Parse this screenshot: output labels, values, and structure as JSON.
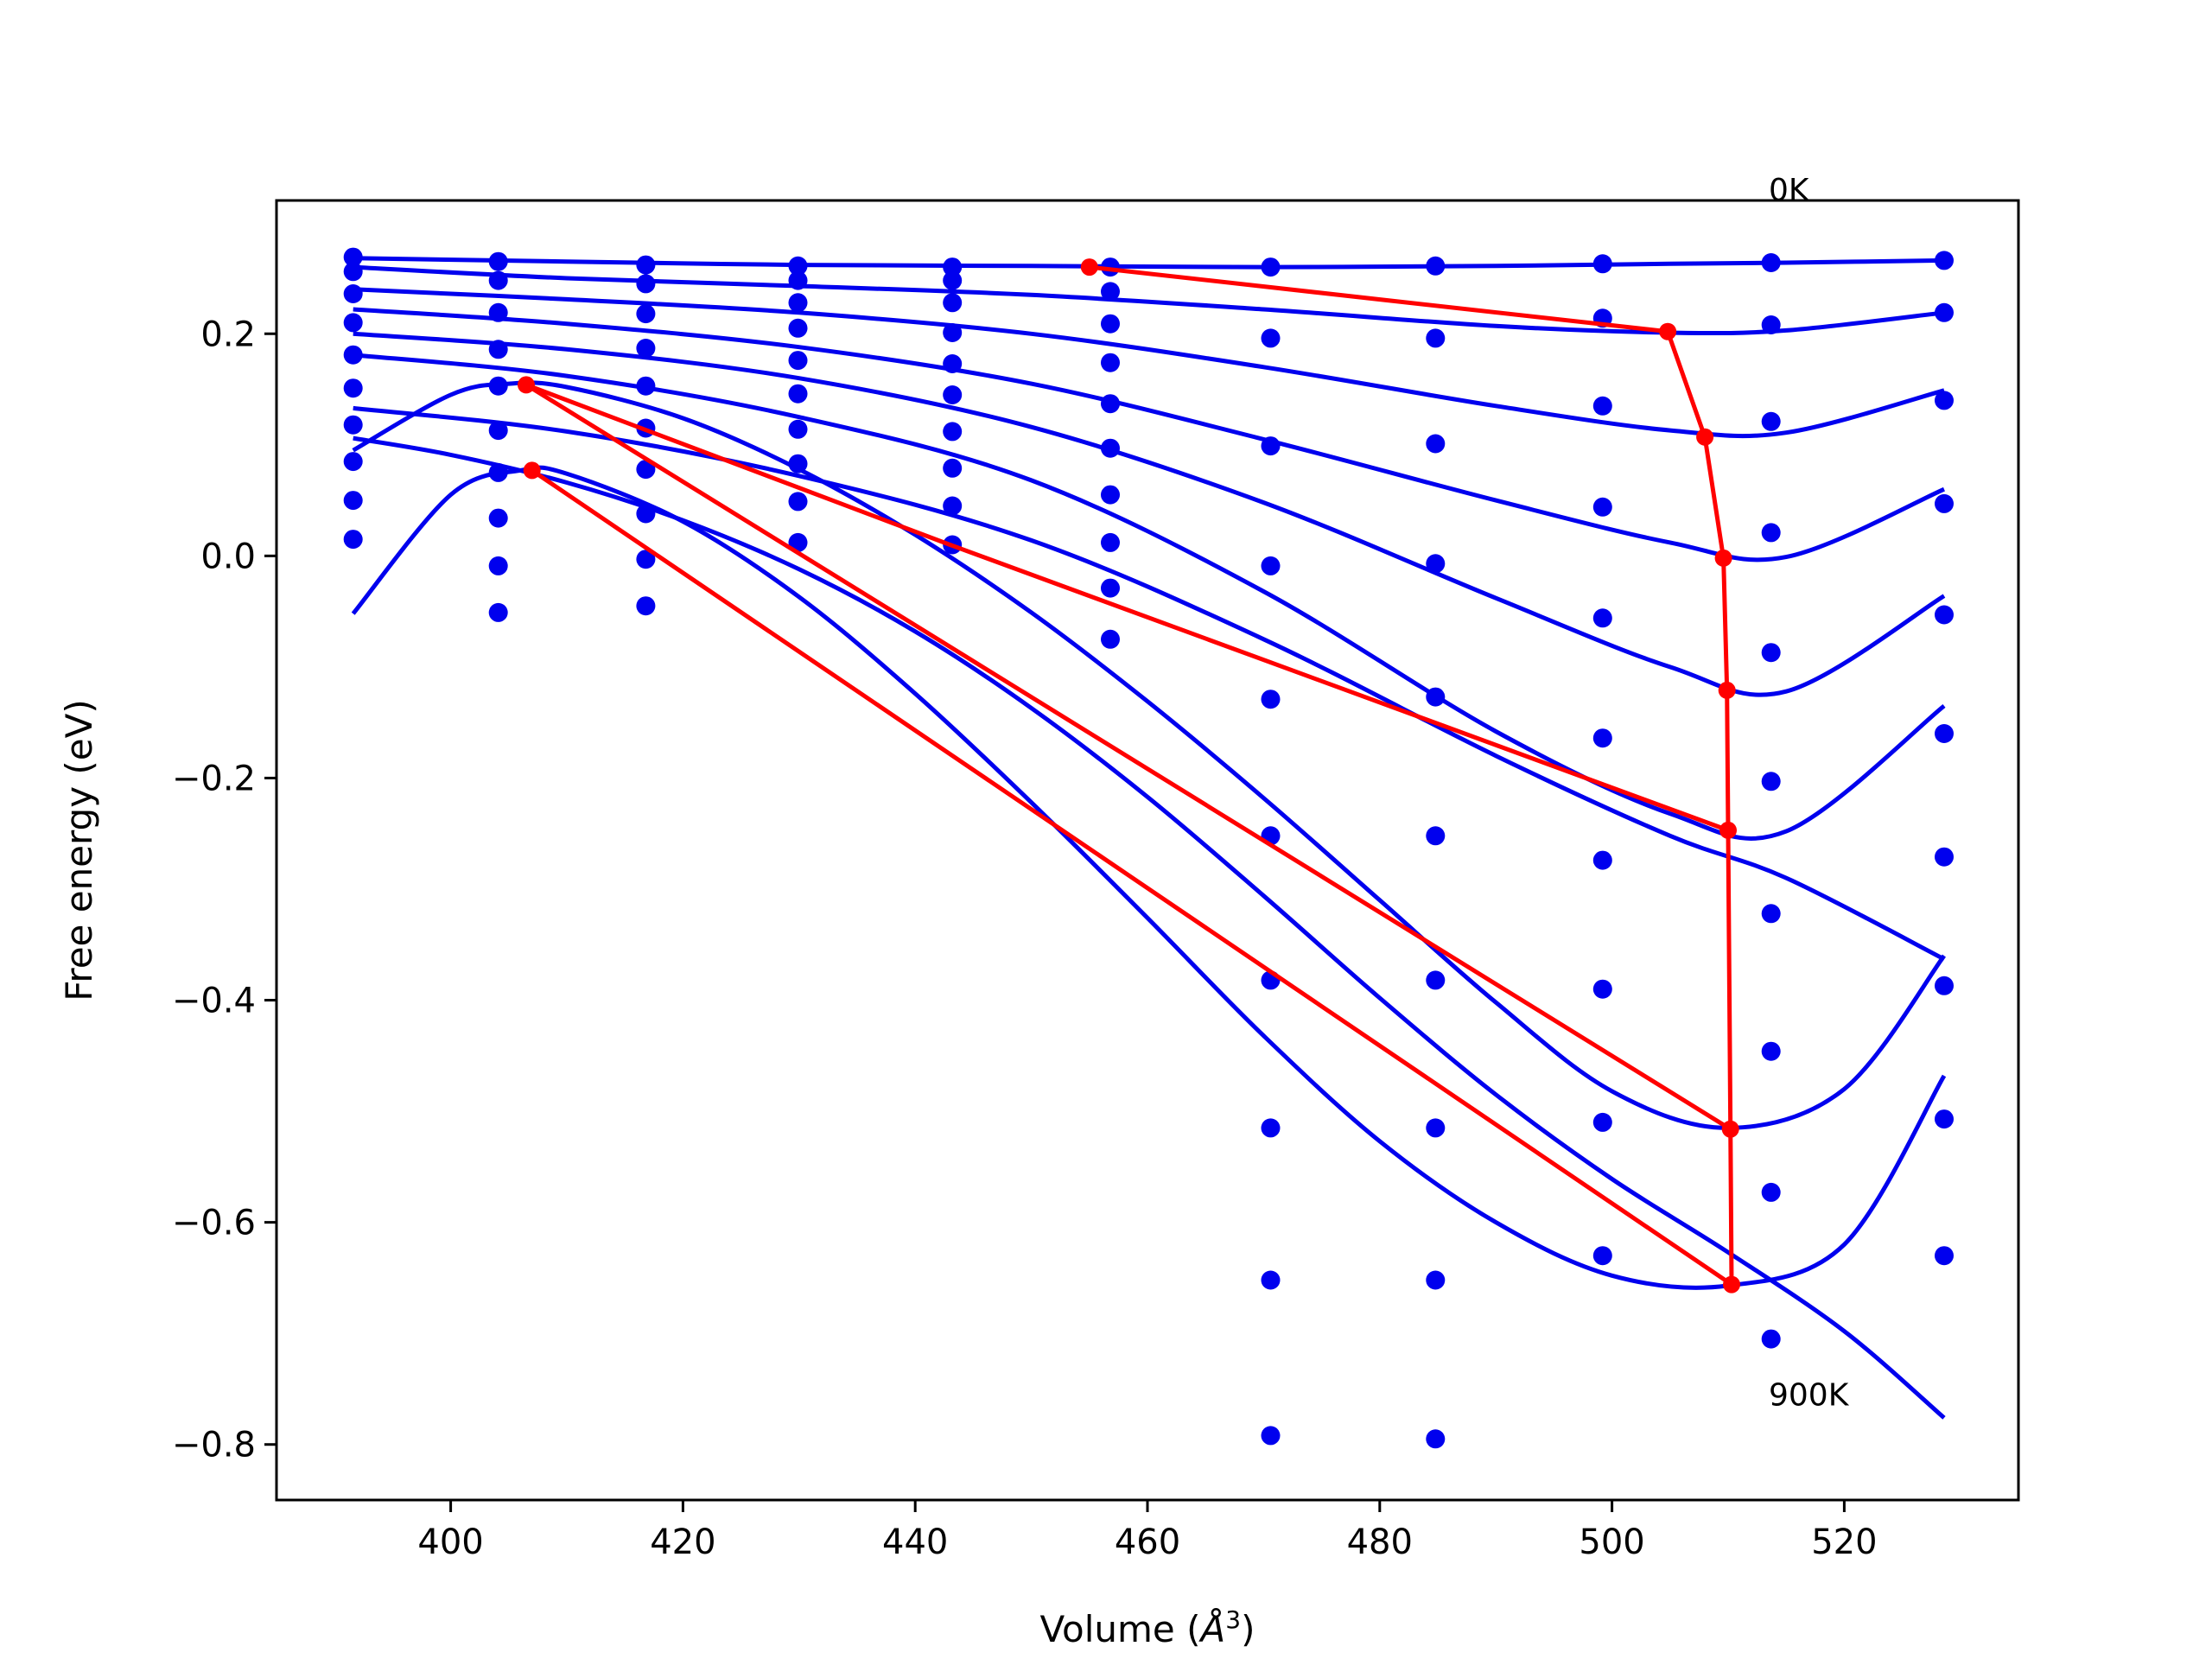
{
  "chart_data": {
    "type": "line",
    "title": "",
    "xlabel": "Volume (",
    "xlabel_unit": "Å",
    "xlabel_exp": "3",
    "xlabel_close": ")",
    "ylabel": "Free energy (eV)",
    "xlim": [
      385,
      535
    ],
    "ylim": [
      -0.85,
      0.32
    ],
    "xticks": [
      400,
      420,
      440,
      460,
      480,
      500,
      520
    ],
    "xtick_labels": [
      "400",
      "420",
      "440",
      "460",
      "480",
      "500",
      "520"
    ],
    "yticks": [
      0.2,
      0.0,
      -0.2,
      -0.4,
      -0.6,
      -0.8
    ],
    "ytick_labels": [
      "0.2",
      "0.0",
      "−0.2",
      "−0.4",
      "−0.6",
      "−0.8"
    ],
    "grid": false,
    "annotations": [
      {
        "text": "0K",
        "x": 513.5,
        "y": 0.32
      },
      {
        "text": "900K",
        "x": 513.5,
        "y": -0.765
      }
    ],
    "colors": {
      "fit": "#0000ee",
      "points": "#0000ee",
      "minima": "#ff0000"
    },
    "volumes": [
      391.6,
      404.1,
      416.8,
      429.9,
      443.2,
      456.8,
      470.6,
      484.8,
      499.2,
      513.7,
      528.6
    ],
    "data_points": [
      [
        0.269,
        0.265,
        0.262,
        0.261,
        0.26,
        0.26,
        0.26,
        0.261,
        0.263,
        0.264,
        0.266
      ],
      [
        0.256,
        0.248,
        0.245,
        0.248,
        0.248,
        0.238,
        null,
        null,
        null,
        null,
        null
      ],
      [
        0.236,
        0.219,
        0.218,
        0.228,
        0.228,
        0.209,
        0.196,
        0.196,
        0.214,
        0.208,
        0.219
      ],
      [
        0.21,
        0.186,
        0.187,
        0.205,
        0.201,
        0.174,
        null,
        null,
        null,
        null,
        null
      ],
      [
        0.181,
        0.153,
        0.153,
        0.176,
        0.173,
        0.137,
        0.099,
        0.101,
        0.135,
        0.121,
        0.14
      ],
      [
        0.151,
        0.113,
        0.115,
        0.146,
        0.145,
        0.097,
        null,
        null,
        null,
        null,
        null
      ],
      [
        0.118,
        0.075,
        0.078,
        0.114,
        0.112,
        0.055,
        -0.009,
        -0.007,
        0.044,
        0.021,
        0.047
      ],
      [
        0.085,
        0.034,
        0.038,
        0.083,
        0.079,
        0.012,
        null,
        null,
        null,
        null,
        null
      ],
      [
        0.05,
        -0.009,
        -0.003,
        0.049,
        0.045,
        -0.029,
        -0.129,
        -0.127,
        -0.056,
        -0.087,
        -0.053
      ],
      [
        0.015,
        -0.051,
        -0.045,
        0.012,
        0.01,
        -0.075,
        null,
        null,
        null,
        null,
        null
      ],
      [
        null,
        null,
        null,
        null,
        null,
        null,
        -0.252,
        -0.252,
        -0.164,
        -0.203,
        -0.16
      ],
      [
        null,
        null,
        null,
        null,
        null,
        null,
        null,
        null,
        -0.274,
        -0.322,
        -0.271
      ],
      [
        null,
        null,
        null,
        null,
        null,
        null,
        -0.382,
        -0.382,
        -0.39,
        -0.446,
        -0.387
      ],
      [
        null,
        null,
        null,
        null,
        null,
        null,
        -0.515,
        -0.515,
        -0.51,
        -0.573,
        -0.507
      ],
      [
        null,
        null,
        null,
        null,
        null,
        null,
        -0.652,
        -0.652,
        -0.63,
        -0.705,
        -0.63
      ],
      [
        null,
        null,
        null,
        null,
        null,
        null,
        -0.792,
        -0.795,
        null,
        null,
        null
      ]
    ],
    "series": [
      {
        "x": [
          391.6,
          410,
          430,
          450,
          470,
          490,
          505,
          515,
          528.6
        ],
        "y": [
          0.268,
          0.265,
          0.262,
          0.261,
          0.26,
          0.261,
          0.263,
          0.264,
          0.266
        ]
      },
      {
        "x": [
          391.6,
          410,
          430,
          450,
          470,
          490,
          505,
          515,
          528.6
        ],
        "y": [
          0.26,
          0.25,
          0.243,
          0.235,
          0.222,
          0.207,
          0.201,
          0.203,
          0.219
        ]
      },
      {
        "x": [
          391.6,
          410,
          430,
          450,
          470,
          490,
          505,
          515,
          528.6
        ],
        "y": [
          0.24,
          0.231,
          0.219,
          0.2,
          0.17,
          0.135,
          0.113,
          0.111,
          0.149
        ]
      },
      {
        "x": [
          391.6,
          410,
          430,
          450,
          470,
          490,
          505,
          515,
          528.6
        ],
        "y": [
          0.222,
          0.209,
          0.188,
          0.155,
          0.105,
          0.05,
          0.012,
          -0.001,
          0.06
        ]
      },
      {
        "x": [
          391.6,
          410,
          430,
          450,
          470,
          490,
          505,
          515,
          528.6
        ],
        "y": [
          0.2,
          0.186,
          0.16,
          0.116,
          0.048,
          -0.038,
          -0.1,
          -0.122,
          -0.036
        ]
      },
      {
        "x": [
          391.6,
          410,
          430,
          450,
          470,
          490,
          505,
          515,
          528.6
        ],
        "y": [
          0.181,
          0.162,
          0.125,
          0.068,
          -0.032,
          -0.158,
          -0.232,
          -0.248,
          -0.135
        ]
      },
      {
        "x": [
          391.6,
          410,
          430,
          450,
          470,
          490,
          505,
          515,
          528.6
        ],
        "y": [
          0.133,
          0.112,
          0.072,
          0.014,
          -0.075,
          -0.18,
          -0.252,
          -0.29,
          -0.363
        ]
      },
      {
        "x": [
          391.6,
          400,
          405,
          410,
          420,
          430,
          440,
          450,
          460,
          470,
          480,
          490,
          500,
          510,
          520,
          528.6
        ],
        "y": [
          0.095,
          0.145,
          0.155,
          0.152,
          0.124,
          0.078,
          0.019,
          -0.051,
          -0.131,
          -0.218,
          -0.31,
          -0.402,
          -0.482,
          -0.515,
          -0.48,
          -0.36
        ]
      },
      {
        "x": [
          391.6,
          400,
          406,
          410,
          420,
          430,
          440,
          450,
          460,
          470,
          480,
          490,
          500,
          510,
          520,
          528.6
        ],
        "y": [
          -0.052,
          0.055,
          0.077,
          0.074,
          0.031,
          -0.037,
          -0.124,
          -0.222,
          -0.326,
          -0.432,
          -0.527,
          -0.6,
          -0.648,
          -0.657,
          -0.62,
          -0.468
        ]
      },
      {
        "x": [
          391.6,
          400,
          410,
          420,
          430,
          440,
          450,
          460,
          470,
          480,
          490,
          500,
          510,
          520,
          528.6
        ],
        "y": [
          0.106,
          0.091,
          0.066,
          0.032,
          -0.012,
          -0.068,
          -0.137,
          -0.217,
          -0.306,
          -0.398,
          -0.485,
          -0.561,
          -0.627,
          -0.698,
          -0.776
        ]
      }
    ],
    "minima_path": {
      "x": [
        455.0,
        504.8,
        508.0,
        509.6,
        509.9,
        510.0,
        510.2,
        510.3
      ],
      "y": [
        0.26,
        0.202,
        0.107,
        -0.002,
        -0.121,
        -0.247,
        -0.516,
        -0.656
      ]
    },
    "tangent_lines": [
      {
        "x": [
          406.5,
          443.0,
          510.0
        ],
        "y": [
          0.154,
          0.01,
          -0.247
        ]
      },
      {
        "x": [
          406.5,
          510.2
        ],
        "y": [
          0.154,
          -0.516
        ]
      },
      {
        "x": [
          407.0,
          510.3
        ],
        "y": [
          0.077,
          -0.656
        ]
      }
    ],
    "tangent_points": [
      {
        "x": 406.5,
        "y": 0.154
      },
      {
        "x": 407.0,
        "y": 0.077
      }
    ]
  }
}
